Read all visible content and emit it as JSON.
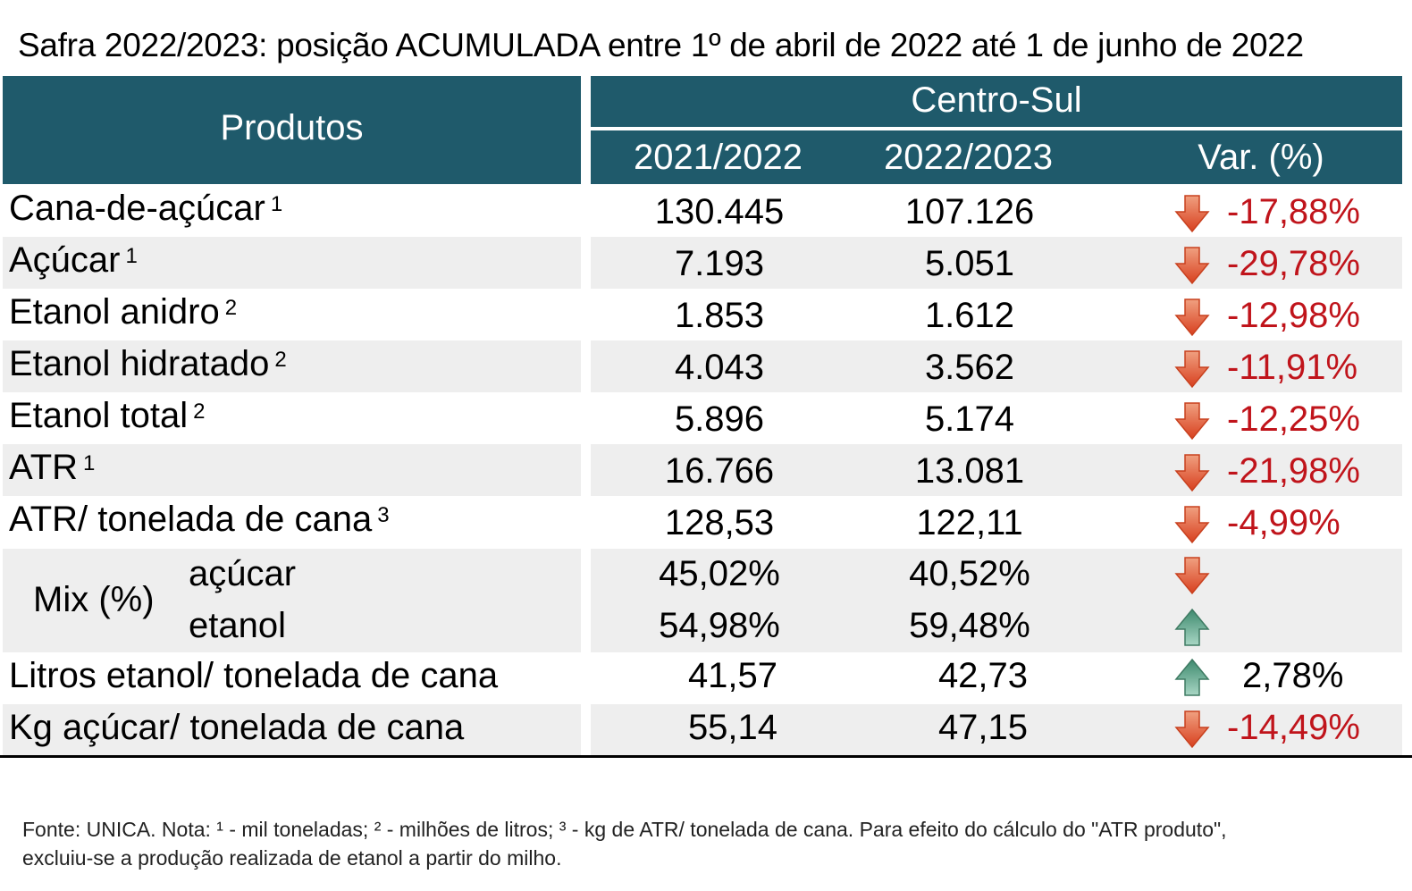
{
  "title": "Safra 2022/2023: posição ACUMULADA entre 1º de abril de 2022 até 1 de junho de 2022",
  "header": {
    "produtos": "Produtos",
    "region": "Centro-Sul",
    "col1": "2021/2022",
    "col2": "2022/2023",
    "col3": "Var. (%)"
  },
  "rows": [
    {
      "label": "Cana-de-açúcar",
      "note": "1",
      "v1": "130.445",
      "v2": "107.126",
      "var": "-17,88%",
      "dir": "down"
    },
    {
      "label": "Açúcar",
      "note": "1",
      "v1": "7.193",
      "v2": "5.051",
      "var": "-29,78%",
      "dir": "down"
    },
    {
      "label": "Etanol anidro",
      "note": "2",
      "v1": "1.853",
      "v2": "1.612",
      "var": "-12,98%",
      "dir": "down"
    },
    {
      "label": "Etanol hidratado",
      "note": "2",
      "v1": "4.043",
      "v2": "3.562",
      "var": "-11,91%",
      "dir": "down"
    },
    {
      "label": "Etanol total",
      "note": "2",
      "v1": "5.896",
      "v2": "5.174",
      "var": "-12,25%",
      "dir": "down"
    },
    {
      "label": "ATR",
      "note": "1",
      "v1": "16.766",
      "v2": "13.081",
      "var": "-21,98%",
      "dir": "down"
    },
    {
      "label": "ATR/ tonelada de cana",
      "note": "3",
      "v1": "128,53",
      "v2": "122,11",
      "var": "-4,99%",
      "dir": "down"
    }
  ],
  "mix": {
    "label": "Mix (%)",
    "acucar": {
      "label": "açúcar",
      "v1": "45,02%",
      "v2": "40,52%",
      "dir": "down"
    },
    "etanol": {
      "label": "etanol",
      "v1": "54,98%",
      "v2": "59,48%",
      "dir": "up"
    }
  },
  "litros": {
    "label": "Litros etanol/ tonelada de cana",
    "v1": "41,57",
    "v2": "42,73",
    "var": "2,78%",
    "dir": "up"
  },
  "kg": {
    "label": "Kg açúcar/ tonelada de cana",
    "v1": "55,14",
    "v2": "47,15",
    "var": "-14,49%",
    "dir": "down"
  },
  "footnote": {
    "line1": "Fonte: UNICA. Nota: ¹ - mil toneladas; ² - milhões de litros; ³ - kg de ATR/ tonelada de cana. Para efeito do cálculo do \"ATR produto\",",
    "line2": "excluiu-se a produção realizada de etanol a partir do milho."
  },
  "colors": {
    "header": "#1f5a6b",
    "negative": "#c0141b",
    "down_arrow": "#d84a2a",
    "up_arrow": "#3e8a6e",
    "shade": "#eeeeee"
  }
}
